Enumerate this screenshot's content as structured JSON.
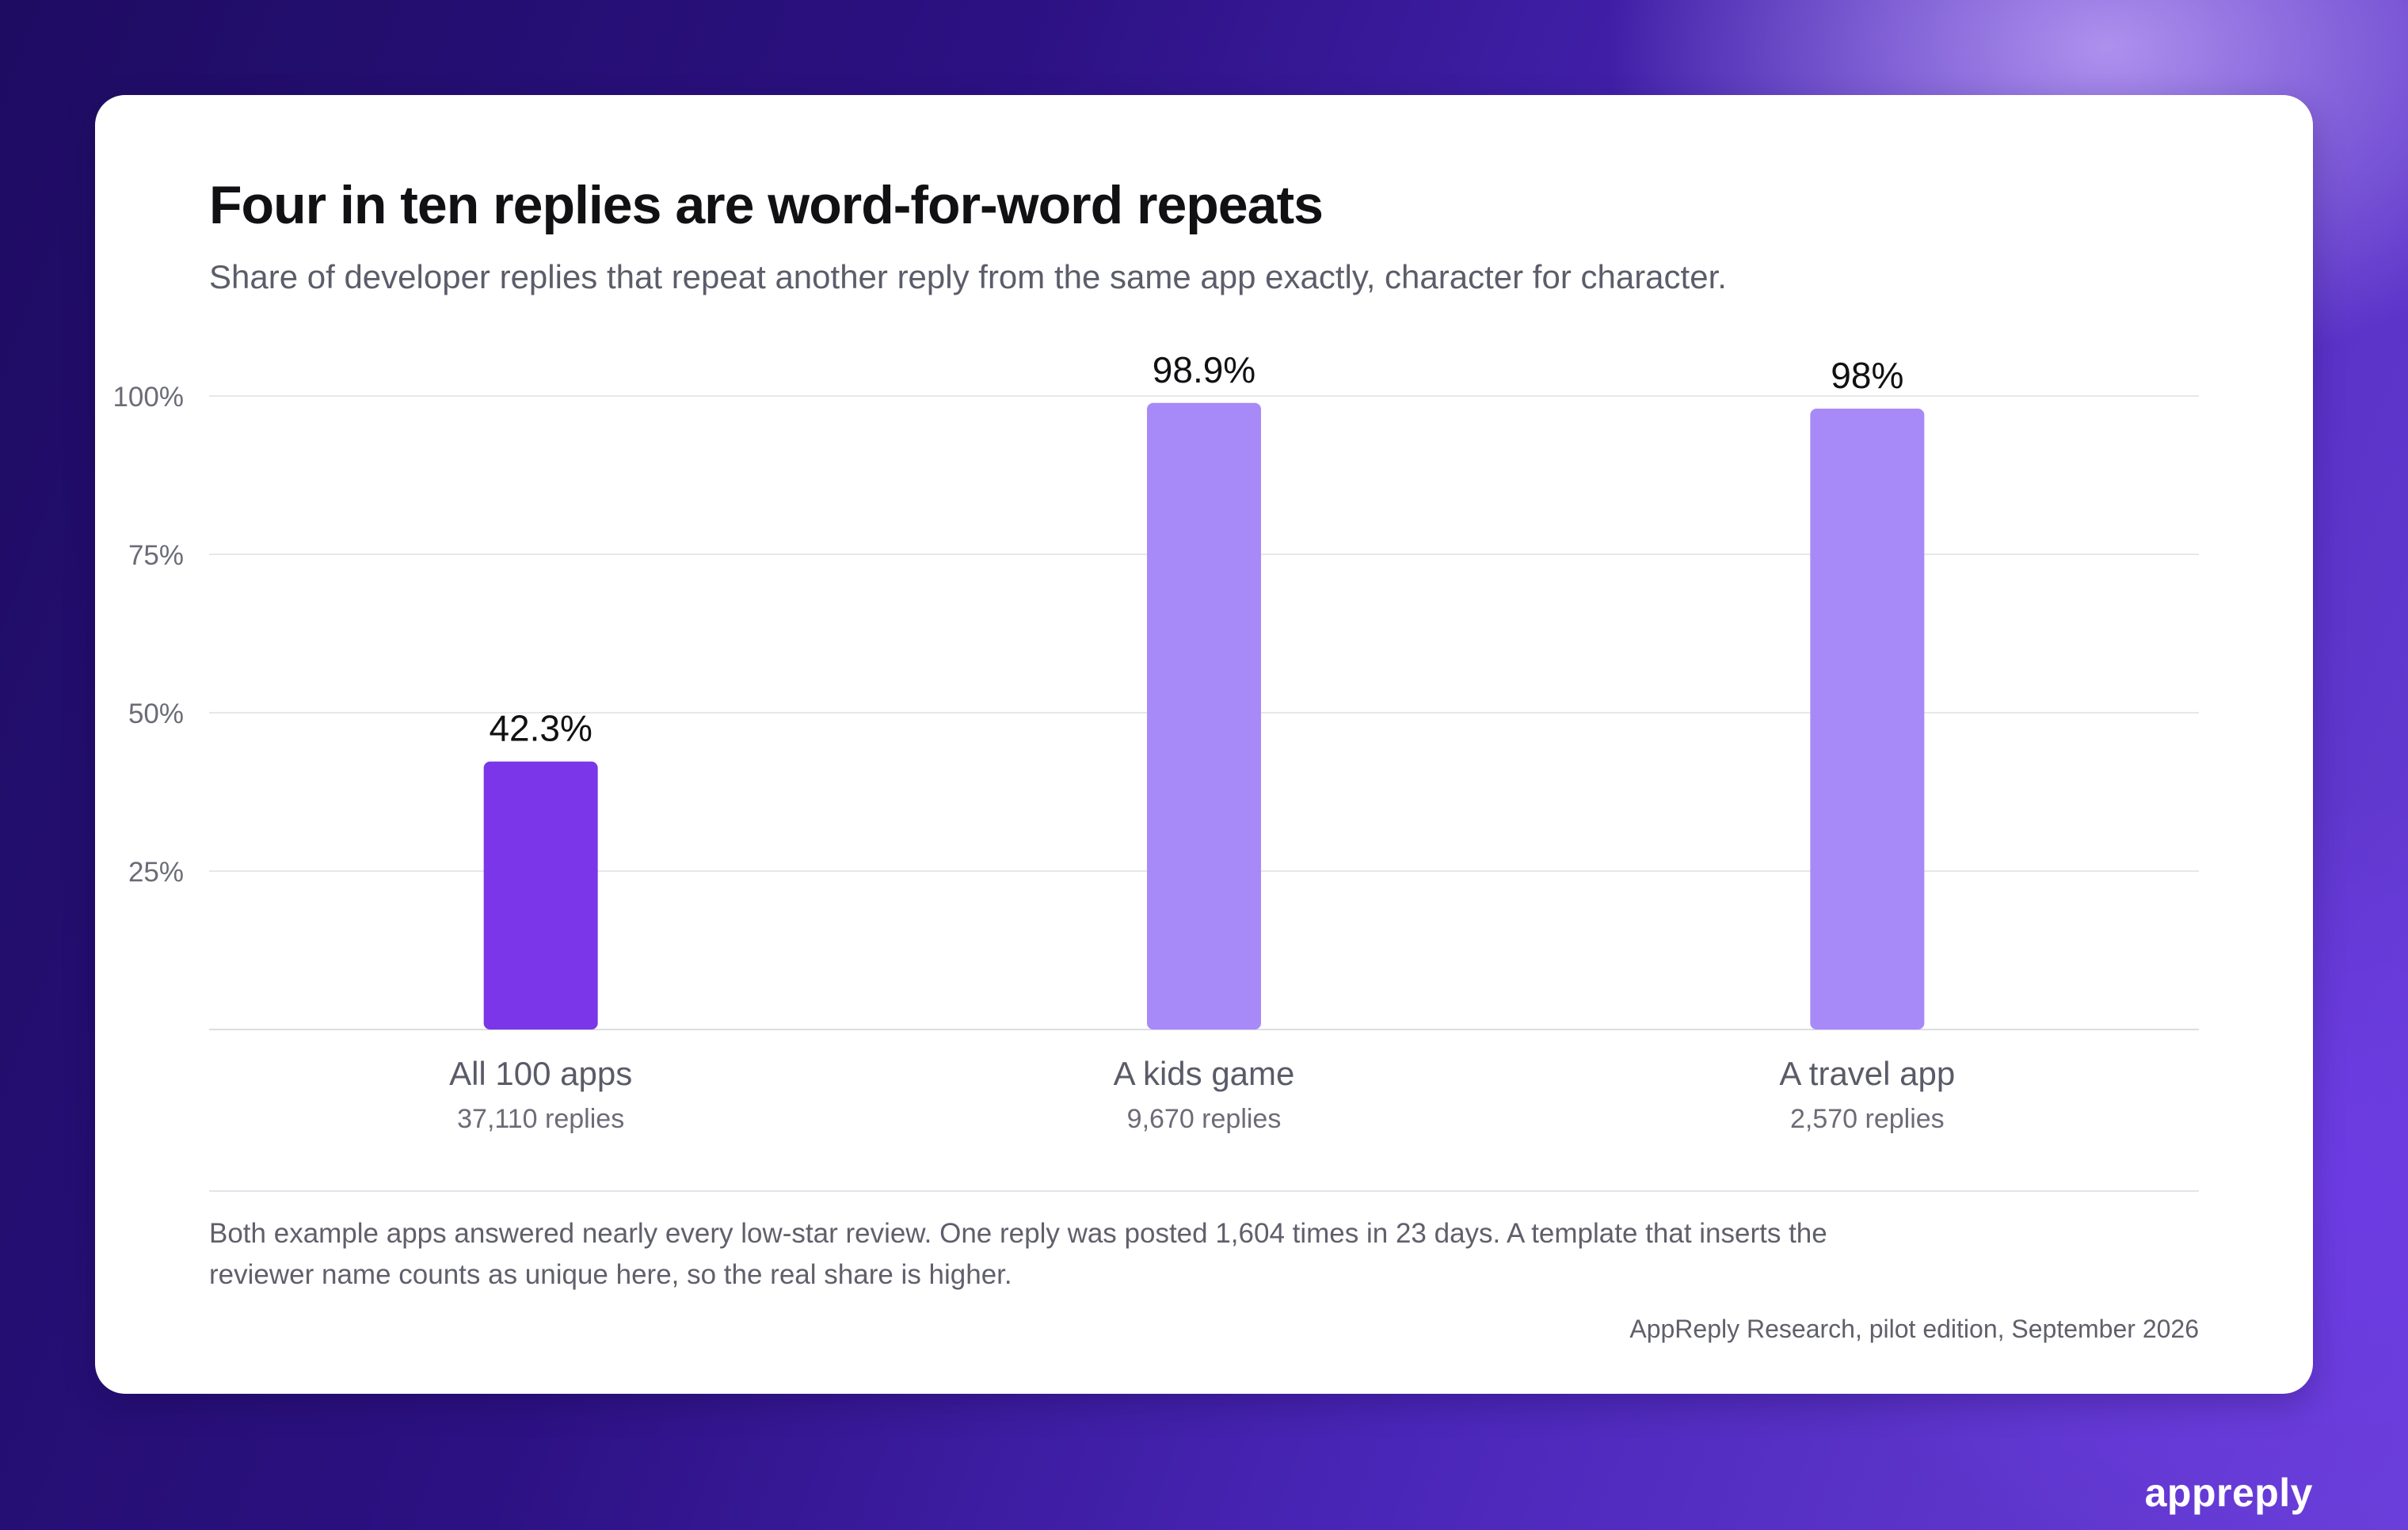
{
  "title": "Four in ten replies are word-for-word repeats",
  "subtitle": "Share of developer replies that repeat another reply from the same app exactly, character for character.",
  "note": "Both example apps answered nearly every low-star review. One reply was posted 1,604 times in 23 days. A template that inserts the reviewer name counts as unique here, so the real share is higher.",
  "source": "AppReply Research, pilot edition, September 2026",
  "brand": "appreply",
  "colors": {
    "highlight_bar": "#7a36e8",
    "example_bar": "#a78af8",
    "gridline": "#e7e7ec"
  },
  "chart_data": {
    "type": "bar",
    "title": "Four in ten replies are word-for-word repeats",
    "subtitle": "Share of developer replies that repeat another reply from the same app exactly, character for character.",
    "categories": [
      "All 100 apps",
      "A kids game",
      "A travel app"
    ],
    "sublabels": [
      "37,110 replies",
      "9,670 replies",
      "2,570 replies"
    ],
    "values": [
      42.3,
      98.9,
      98
    ],
    "value_labels": [
      "42.3%",
      "98.9%",
      "98%"
    ],
    "yticks": [
      {
        "value": 25,
        "label": "25%"
      },
      {
        "value": 50,
        "label": "50%"
      },
      {
        "value": 75,
        "label": "75%"
      },
      {
        "value": 100,
        "label": "100%"
      }
    ],
    "ylim": [
      0,
      100
    ],
    "xlabel": "",
    "ylabel": "",
    "grid": true,
    "legend": "none"
  }
}
